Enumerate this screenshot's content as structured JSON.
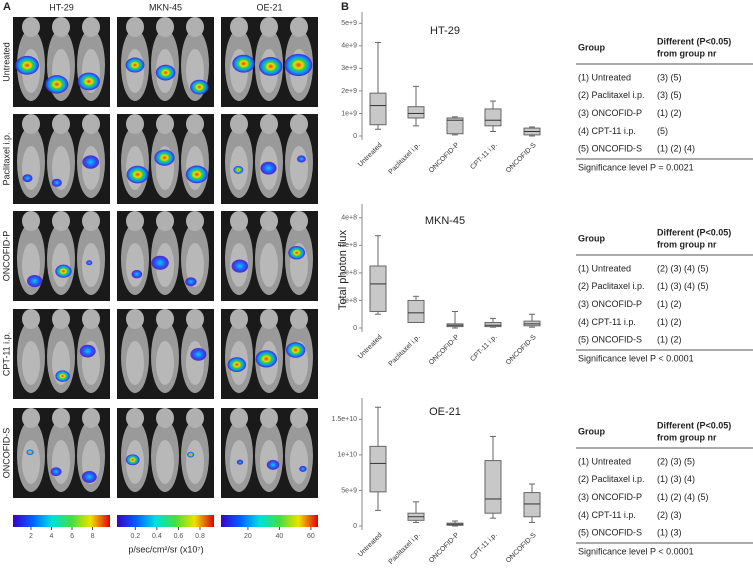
{
  "panel_a": {
    "label": "A",
    "columns": [
      "HT-29",
      "MKN-45",
      "OE-21"
    ],
    "rows": [
      "Untreated",
      "Paclitaxel i.p.",
      "ONCOFID-P",
      "CPT-11 i.p.",
      "ONCOFID-S"
    ],
    "colorbars": [
      {
        "range": [
          0.25,
          9.7
        ],
        "ticks": [
          2,
          4,
          6,
          8
        ]
      },
      {
        "range": [
          0.03,
          0.93
        ],
        "ticks": [
          0.2,
          0.4,
          0.6,
          0.8
        ]
      },
      {
        "range": [
          2.9,
          64.5
        ],
        "ticks": [
          20,
          40,
          60
        ]
      }
    ],
    "colorbar_unit": "p/sec/cm²/sr (x10⁷)"
  },
  "panel_b": {
    "label": "B",
    "y_label": "Total photon flux"
  },
  "chart_data": [
    {
      "type": "box",
      "title": "HT-29",
      "categories": [
        "Untreated",
        "Paclitaxel i.p.",
        "ONCOFID-P",
        "CPT-11 i.p.",
        "ONCOFID-S"
      ],
      "boxes": [
        {
          "min": 300000000,
          "q1": 500000000,
          "median": 1350000000,
          "q3": 1900000000,
          "max": 4150000000
        },
        {
          "min": 450000000,
          "q1": 800000000,
          "median": 1000000000,
          "q3": 1300000000,
          "max": 2200000000
        },
        {
          "min": 50000000,
          "q1": 100000000,
          "median": 700000000,
          "q3": 800000000,
          "max": 850000000
        },
        {
          "min": 200000000,
          "q1": 450000000,
          "median": 700000000,
          "q3": 1200000000,
          "max": 1550000000
        },
        {
          "min": 0,
          "q1": 50000000,
          "median": 200000000,
          "q3": 350000000,
          "max": 400000000
        }
      ],
      "ylim": [
        0,
        5500000000
      ],
      "yticks": [
        0,
        {
          "value": 1000000000,
          "label": "1e+9"
        },
        {
          "value": 2000000000,
          "label": "2e+9"
        },
        {
          "value": 3000000000,
          "label": "3e+9"
        },
        {
          "value": 4000000000,
          "label": "4e+9"
        },
        {
          "value": 5000000000,
          "label": "5e+9"
        }
      ],
      "table": {
        "header": [
          "Group",
          "Different (P<0.05)",
          "from group nr"
        ],
        "rows": [
          [
            "(1) Untreated",
            "(3) (5)"
          ],
          [
            "(2) Paclitaxel i.p.",
            "(3) (5)"
          ],
          [
            "(3) ONCOFID-P",
            "(1) (2)"
          ],
          [
            "(4) CPT-11 i.p.",
            "(5)"
          ],
          [
            "(5) ONCOFID-S",
            "(1) (2) (4)"
          ]
        ],
        "footer": "Significance level P = 0.0021"
      }
    },
    {
      "type": "box",
      "title": "MKN-45",
      "categories": [
        "Untreated",
        "Paclitaxel i.p.",
        "ONCOFID-P",
        "CPT-11 i.p.",
        "ONCOFID-S"
      ],
      "boxes": [
        {
          "min": 50000000,
          "q1": 60000000,
          "median": 160000000,
          "q3": 225000000,
          "max": 335000000
        },
        {
          "min": 20000000,
          "q1": 20000000,
          "median": 55000000,
          "q3": 100000000,
          "max": 115000000
        },
        {
          "min": 0,
          "q1": 5000000,
          "median": 10000000,
          "q3": 15000000,
          "max": 60000000
        },
        {
          "min": 3000000,
          "q1": 5000000,
          "median": 10000000,
          "q3": 20000000,
          "max": 35000000
        },
        {
          "min": 3000000,
          "q1": 8000000,
          "median": 15000000,
          "q3": 25000000,
          "max": 50000000
        }
      ],
      "ylim": [
        0,
        450000000
      ],
      "yticks": [
        0,
        {
          "value": 100000000,
          "label": "1e+8"
        },
        {
          "value": 200000000,
          "label": "2e+8"
        },
        {
          "value": 300000000,
          "label": "3e+8"
        },
        {
          "value": 400000000,
          "label": "4e+8"
        }
      ],
      "table": {
        "header": [
          "Group",
          "Different (P<0.05)",
          "from group nr"
        ],
        "rows": [
          [
            "(1) Untreated",
            "(2) (3) (4) (5)"
          ],
          [
            "(2) Paclitaxel i.p.",
            "(1) (3) (4) (5)"
          ],
          [
            "(3) ONCOFID-P",
            "(1) (2)"
          ],
          [
            "(4) CPT-11 i.p.",
            "(1) (2)"
          ],
          [
            "(5) ONCOFID-S",
            "(1) (2)"
          ]
        ],
        "footer": "Significance level P < 0.0001"
      }
    },
    {
      "type": "box",
      "title": "OE-21",
      "categories": [
        "Untreated",
        "Paclitaxel i.p.",
        "ONCOFID-P",
        "CPT-11 i.p.",
        "ONCOFID-S"
      ],
      "boxes": [
        {
          "min": 2200000000,
          "q1": 4800000000,
          "median": 8800000000,
          "q3": 11200000000,
          "max": 16700000000
        },
        {
          "min": 500000000,
          "q1": 800000000,
          "median": 1300000000,
          "q3": 1800000000,
          "max": 3400000000
        },
        {
          "min": 0,
          "q1": 100000000,
          "median": 250000000,
          "q3": 400000000,
          "max": 700000000
        },
        {
          "min": 1100000000,
          "q1": 1800000000,
          "median": 3800000000,
          "q3": 9200000000,
          "max": 12600000000
        },
        {
          "min": 500000000,
          "q1": 1300000000,
          "median": 3100000000,
          "q3": 4700000000,
          "max": 5900000000
        }
      ],
      "ylim": [
        0,
        18000000000
      ],
      "yticks": [
        0,
        {
          "value": 5000000000,
          "label": "5e+9"
        },
        {
          "value": 10000000000,
          "label": "1e+10"
        },
        {
          "value": 15000000000,
          "label": "1.5e+10"
        }
      ],
      "table": {
        "header": [
          "Group",
          "Different (P<0.05)",
          "from group nr"
        ],
        "rows": [
          [
            "(1) Untreated",
            "(2) (3) (5)"
          ],
          [
            "(2) Paclitaxel i.p.",
            "(1) (3) (4)"
          ],
          [
            "(3) ONCOFID-P",
            "(1) (2) (4) (5)"
          ],
          [
            "(4) CPT-11 i.p.",
            "(2) (3)"
          ],
          [
            "(5) ONCOFID-S",
            "(1) (3)"
          ]
        ],
        "footer": "Significance level P < 0.0001"
      }
    }
  ]
}
